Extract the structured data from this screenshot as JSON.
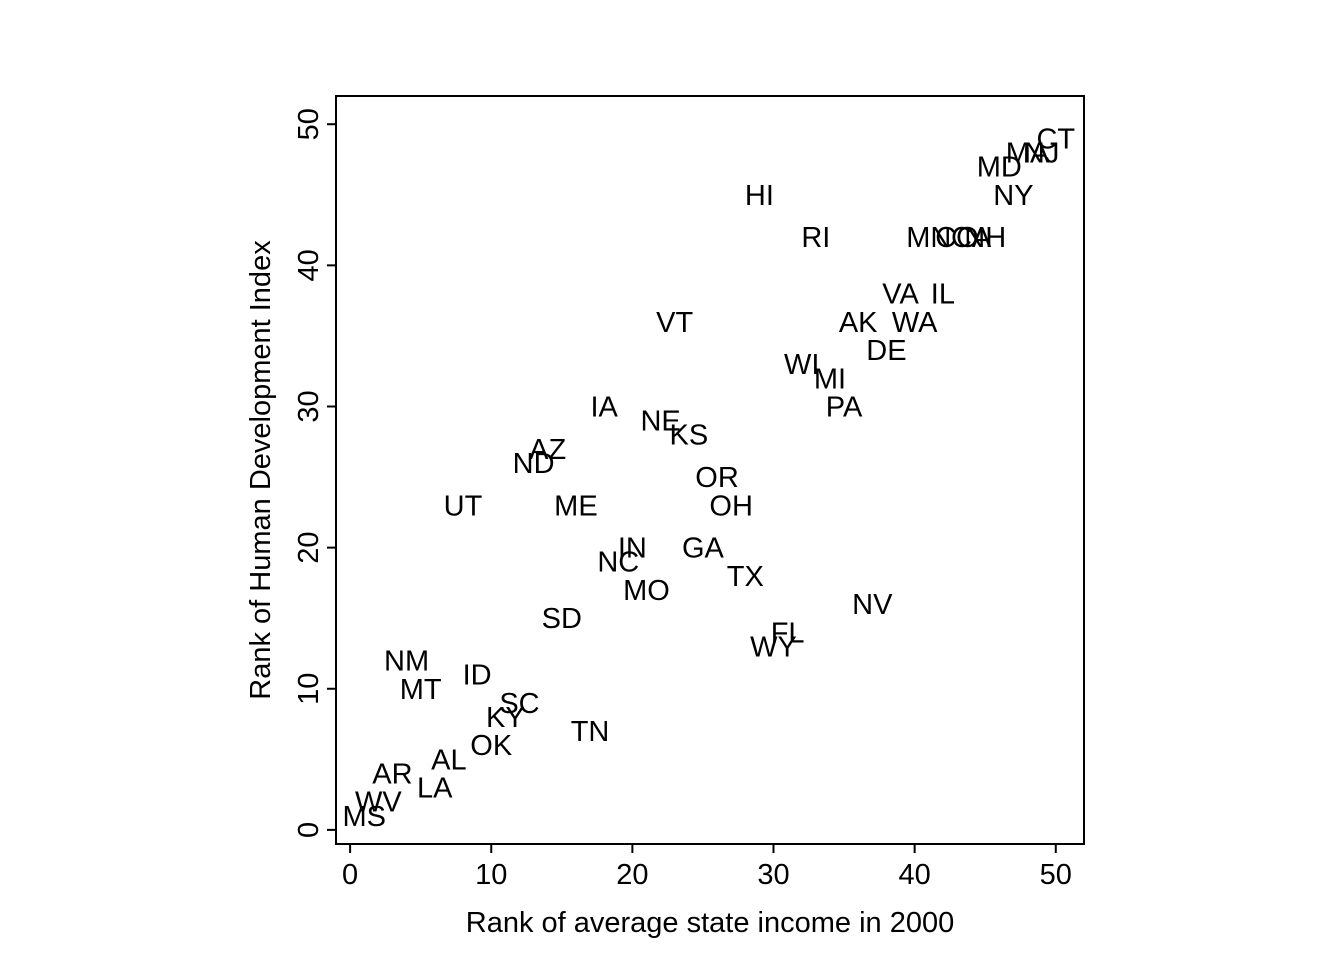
{
  "chart_data": {
    "type": "scatter",
    "title": "",
    "xlabel": "Rank of average state income in 2000",
    "ylabel": "Rank of Human Development Index",
    "xlim": [
      -1,
      52
    ],
    "ylim": [
      -1,
      52
    ],
    "xticks": [
      0,
      10,
      20,
      30,
      40,
      50
    ],
    "yticks": [
      0,
      10,
      20,
      30,
      40,
      50
    ],
    "grid": false,
    "legend": "none",
    "marker": "label-only",
    "points": [
      {
        "label": "MS",
        "x": 1,
        "y": 1
      },
      {
        "label": "WV",
        "x": 2,
        "y": 2
      },
      {
        "label": "AR",
        "x": 3,
        "y": 4
      },
      {
        "label": "NM",
        "x": 4,
        "y": 12
      },
      {
        "label": "MT",
        "x": 5,
        "y": 10
      },
      {
        "label": "LA",
        "x": 6,
        "y": 3
      },
      {
        "label": "AL",
        "x": 7,
        "y": 5
      },
      {
        "label": "UT",
        "x": 8,
        "y": 23
      },
      {
        "label": "ID",
        "x": 9,
        "y": 11
      },
      {
        "label": "OK",
        "x": 10,
        "y": 6
      },
      {
        "label": "KY",
        "x": 11,
        "y": 8
      },
      {
        "label": "SC",
        "x": 12,
        "y": 9
      },
      {
        "label": "ND",
        "x": 13,
        "y": 26
      },
      {
        "label": "AZ",
        "x": 14,
        "y": 27
      },
      {
        "label": "SD",
        "x": 15,
        "y": 15
      },
      {
        "label": "ME",
        "x": 16,
        "y": 23
      },
      {
        "label": "TN",
        "x": 17,
        "y": 7
      },
      {
        "label": "IA",
        "x": 18,
        "y": 30
      },
      {
        "label": "NC",
        "x": 19,
        "y": 19
      },
      {
        "label": "IN",
        "x": 20,
        "y": 20
      },
      {
        "label": "MO",
        "x": 21,
        "y": 17
      },
      {
        "label": "NE",
        "x": 22,
        "y": 29
      },
      {
        "label": "VT",
        "x": 23,
        "y": 36
      },
      {
        "label": "KS",
        "x": 24,
        "y": 28
      },
      {
        "label": "GA",
        "x": 25,
        "y": 20
      },
      {
        "label": "OR",
        "x": 26,
        "y": 25
      },
      {
        "label": "OH",
        "x": 27,
        "y": 23
      },
      {
        "label": "TX",
        "x": 28,
        "y": 18
      },
      {
        "label": "HI",
        "x": 29,
        "y": 45
      },
      {
        "label": "WY",
        "x": 30,
        "y": 13
      },
      {
        "label": "FL",
        "x": 31,
        "y": 14
      },
      {
        "label": "WI",
        "x": 32,
        "y": 33
      },
      {
        "label": "RI",
        "x": 33,
        "y": 42
      },
      {
        "label": "MI",
        "x": 34,
        "y": 32
      },
      {
        "label": "PA",
        "x": 35,
        "y": 30
      },
      {
        "label": "AK",
        "x": 36,
        "y": 36
      },
      {
        "label": "NV",
        "x": 37,
        "y": 16
      },
      {
        "label": "DE",
        "x": 38,
        "y": 34
      },
      {
        "label": "VA",
        "x": 39,
        "y": 38
      },
      {
        "label": "WA",
        "x": 40,
        "y": 36
      },
      {
        "label": "MN",
        "x": 41,
        "y": 42
      },
      {
        "label": "IL",
        "x": 42,
        "y": 38
      },
      {
        "label": "CO",
        "x": 43,
        "y": 42
      },
      {
        "label": "CA",
        "x": 44,
        "y": 42
      },
      {
        "label": "NH",
        "x": 45,
        "y": 42
      },
      {
        "label": "MD",
        "x": 46,
        "y": 47
      },
      {
        "label": "NY",
        "x": 47,
        "y": 45
      },
      {
        "label": "MA",
        "x": 48,
        "y": 48
      },
      {
        "label": "NJ",
        "x": 49,
        "y": 48
      },
      {
        "label": "CT",
        "x": 50,
        "y": 49
      }
    ]
  }
}
